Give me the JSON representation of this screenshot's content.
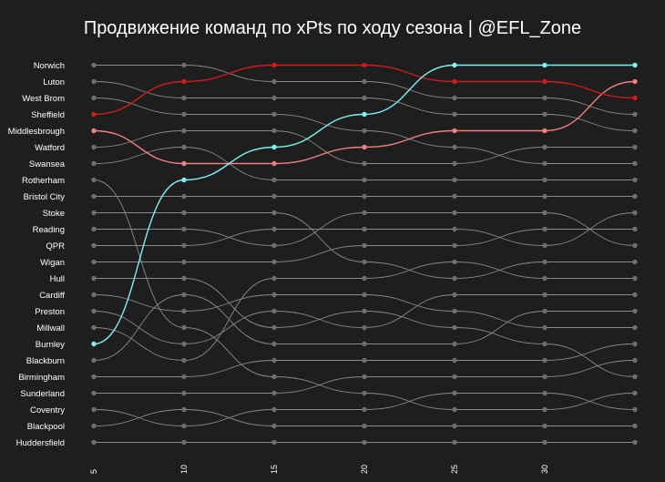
{
  "chart_data": {
    "type": "bump",
    "title": "Продвижение команд по xPts по ходу сезона | @EFL_Zone",
    "x": [
      5,
      10,
      15,
      20,
      25,
      30,
      35
    ],
    "x_ticks": [
      5,
      10,
      15,
      20,
      25,
      30
    ],
    "grid": false,
    "teams": [
      "Norwich",
      "Luton",
      "West Brom",
      "Sheffield",
      "Middlesbrough",
      "Watford",
      "Swansea",
      "Rotherham",
      "Bristol City",
      "Stoke",
      "Reading",
      "QPR",
      "Wigan",
      "Hull",
      "Cardiff",
      "Preston",
      "Millwall",
      "Burnley",
      "Blackburn",
      "Birmingham",
      "Sunderland",
      "Coventry",
      "Blackpool",
      "Huddersfield"
    ],
    "colors": {
      "default": "#8a8a8a",
      "burnley": "#7ff0f0",
      "sheffield": "#d11a1a",
      "middlesbrough": "#f08080"
    },
    "series": [
      {
        "name": "Burnley",
        "ranks": [
          18,
          8,
          6,
          4,
          1,
          1,
          1
        ]
      },
      {
        "name": "Sheffield",
        "ranks": [
          4,
          2,
          1,
          1,
          2,
          2,
          3
        ]
      },
      {
        "name": "Middlesbrough",
        "ranks": [
          5,
          7,
          7,
          6,
          5,
          5,
          2
        ]
      },
      {
        "name": "Norwich",
        "ranks": [
          1,
          1,
          2,
          2,
          3,
          3,
          4
        ]
      },
      {
        "name": "Luton",
        "ranks": [
          2,
          3,
          3,
          3,
          4,
          4,
          5
        ]
      },
      {
        "name": "West Brom",
        "ranks": [
          3,
          4,
          4,
          5,
          6,
          7,
          7
        ]
      },
      {
        "name": "Watford",
        "ranks": [
          6,
          5,
          5,
          7,
          7,
          6,
          6
        ]
      },
      {
        "name": "Swansea",
        "ranks": [
          7,
          6,
          8,
          8,
          8,
          8,
          8
        ]
      },
      {
        "name": "Rotherham",
        "ranks": [
          8,
          17,
          20,
          21,
          22,
          22,
          21
        ]
      },
      {
        "name": "Bristol City",
        "ranks": [
          9,
          9,
          9,
          9,
          9,
          9,
          9
        ]
      },
      {
        "name": "Stoke",
        "ranks": [
          10,
          10,
          10,
          13,
          14,
          13,
          13
        ]
      },
      {
        "name": "Reading",
        "ranks": [
          11,
          11,
          12,
          10,
          10,
          10,
          12
        ]
      },
      {
        "name": "QPR",
        "ranks": [
          12,
          12,
          11,
          11,
          11,
          12,
          10
        ]
      },
      {
        "name": "Wigan",
        "ranks": [
          13,
          13,
          13,
          12,
          12,
          11,
          11
        ]
      },
      {
        "name": "Hull",
        "ranks": [
          14,
          14,
          17,
          16,
          17,
          18,
          20
        ]
      },
      {
        "name": "Cardiff",
        "ranks": [
          15,
          16,
          15,
          15,
          16,
          17,
          17
        ]
      },
      {
        "name": "Preston",
        "ranks": [
          16,
          18,
          16,
          17,
          15,
          15,
          15
        ]
      },
      {
        "name": "Millwall",
        "ranks": [
          17,
          19,
          14,
          14,
          13,
          14,
          14
        ]
      },
      {
        "name": "Blackburn",
        "ranks": [
          19,
          15,
          18,
          18,
          18,
          16,
          16
        ]
      },
      {
        "name": "Birmingham",
        "ranks": [
          20,
          20,
          19,
          19,
          19,
          19,
          18
        ]
      },
      {
        "name": "Sunderland",
        "ranks": [
          21,
          21,
          21,
          20,
          20,
          20,
          19
        ]
      },
      {
        "name": "Coventry",
        "ranks": [
          22,
          23,
          22,
          22,
          21,
          21,
          22
        ]
      },
      {
        "name": "Blackpool",
        "ranks": [
          23,
          22,
          23,
          23,
          23,
          23,
          23
        ]
      },
      {
        "name": "Huddersfield",
        "ranks": [
          24,
          24,
          24,
          24,
          24,
          24,
          24
        ]
      }
    ]
  }
}
